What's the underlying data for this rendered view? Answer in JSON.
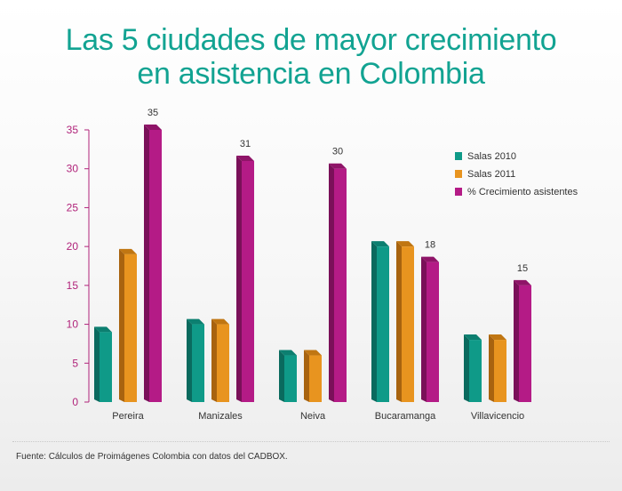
{
  "title_lines": [
    "Las 5 ciudades de mayor crecimiento",
    "en asistencia en Colombia"
  ],
  "source": "Fuente: Cálculos de Proimágenes Colombia con datos del CADBOX.",
  "colors": {
    "title": "#12a392",
    "axis": "#b0237a",
    "series": [
      "#0f9a88",
      "#e8941f",
      "#b41b86"
    ],
    "series_side": [
      "#0a6a5e",
      "#a8630f",
      "#7a1059"
    ],
    "series_top": [
      "#0c7f70",
      "#c07612",
      "#8f1468"
    ]
  },
  "chart_data": {
    "type": "bar",
    "categories": [
      "Pereira",
      "Manizales",
      "Neiva",
      "Bucaramanga",
      "Villavicencio"
    ],
    "series": [
      {
        "name": "Salas 2010",
        "values": [
          9,
          10,
          6,
          20,
          8
        ]
      },
      {
        "name": "Salas 2011",
        "values": [
          19,
          10,
          6,
          20,
          8
        ]
      },
      {
        "name": "% Crecimiento asistentes",
        "values": [
          35,
          31,
          30,
          18,
          15
        ]
      }
    ],
    "data_labels": [
      "35",
      "31",
      "30",
      "18",
      "15"
    ],
    "yticks": [
      "0",
      "5",
      "10",
      "15",
      "20",
      "25",
      "30",
      "35"
    ],
    "ylim": [
      0,
      35
    ],
    "legend_position": "right",
    "grid": false
  }
}
